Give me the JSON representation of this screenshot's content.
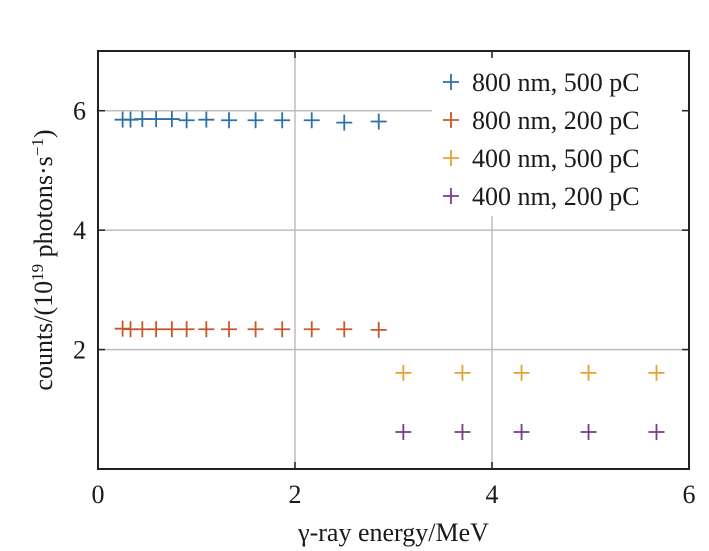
{
  "chart_data": {
    "type": "scatter",
    "xlabel": "γ-ray energy/MeV",
    "ylabel": {
      "pre": "counts/(10",
      "sup1": "19",
      "mid": " photons·s",
      "sup2": "−1",
      "post": ")"
    },
    "xlim": [
      0,
      6
    ],
    "ylim": [
      0,
      7
    ],
    "xticks": [
      0,
      2,
      4,
      6
    ],
    "yticks": [
      2,
      4,
      6
    ],
    "grid": true,
    "legend_position": "top-right",
    "marker": "+",
    "series": [
      {
        "name": "800 nm, 500 pC",
        "color": "#2f6fa8",
        "x": [
          0.25,
          0.33,
          0.45,
          0.59,
          0.75,
          0.9,
          1.1,
          1.33,
          1.6,
          1.87,
          2.17,
          2.5,
          2.85
        ],
        "y": [
          5.85,
          5.85,
          5.86,
          5.86,
          5.86,
          5.84,
          5.85,
          5.84,
          5.84,
          5.84,
          5.84,
          5.8,
          5.82
        ]
      },
      {
        "name": "800 nm, 200 pC",
        "color": "#c45a2a",
        "x": [
          0.25,
          0.33,
          0.45,
          0.59,
          0.75,
          0.9,
          1.1,
          1.33,
          1.6,
          1.87,
          2.17,
          2.5,
          2.85
        ],
        "y": [
          2.35,
          2.34,
          2.34,
          2.34,
          2.34,
          2.34,
          2.34,
          2.34,
          2.34,
          2.34,
          2.34,
          2.34,
          2.33
        ]
      },
      {
        "name": "400 nm, 500 pC",
        "color": "#e2a237",
        "x": [
          3.1,
          3.7,
          4.3,
          4.98,
          5.67
        ],
        "y": [
          1.61,
          1.61,
          1.61,
          1.61,
          1.61
        ]
      },
      {
        "name": "400 nm, 200 pC",
        "color": "#7b3b8c",
        "x": [
          3.1,
          3.7,
          4.3,
          4.98,
          5.67
        ],
        "y": [
          0.62,
          0.62,
          0.62,
          0.62,
          0.62
        ]
      }
    ]
  }
}
